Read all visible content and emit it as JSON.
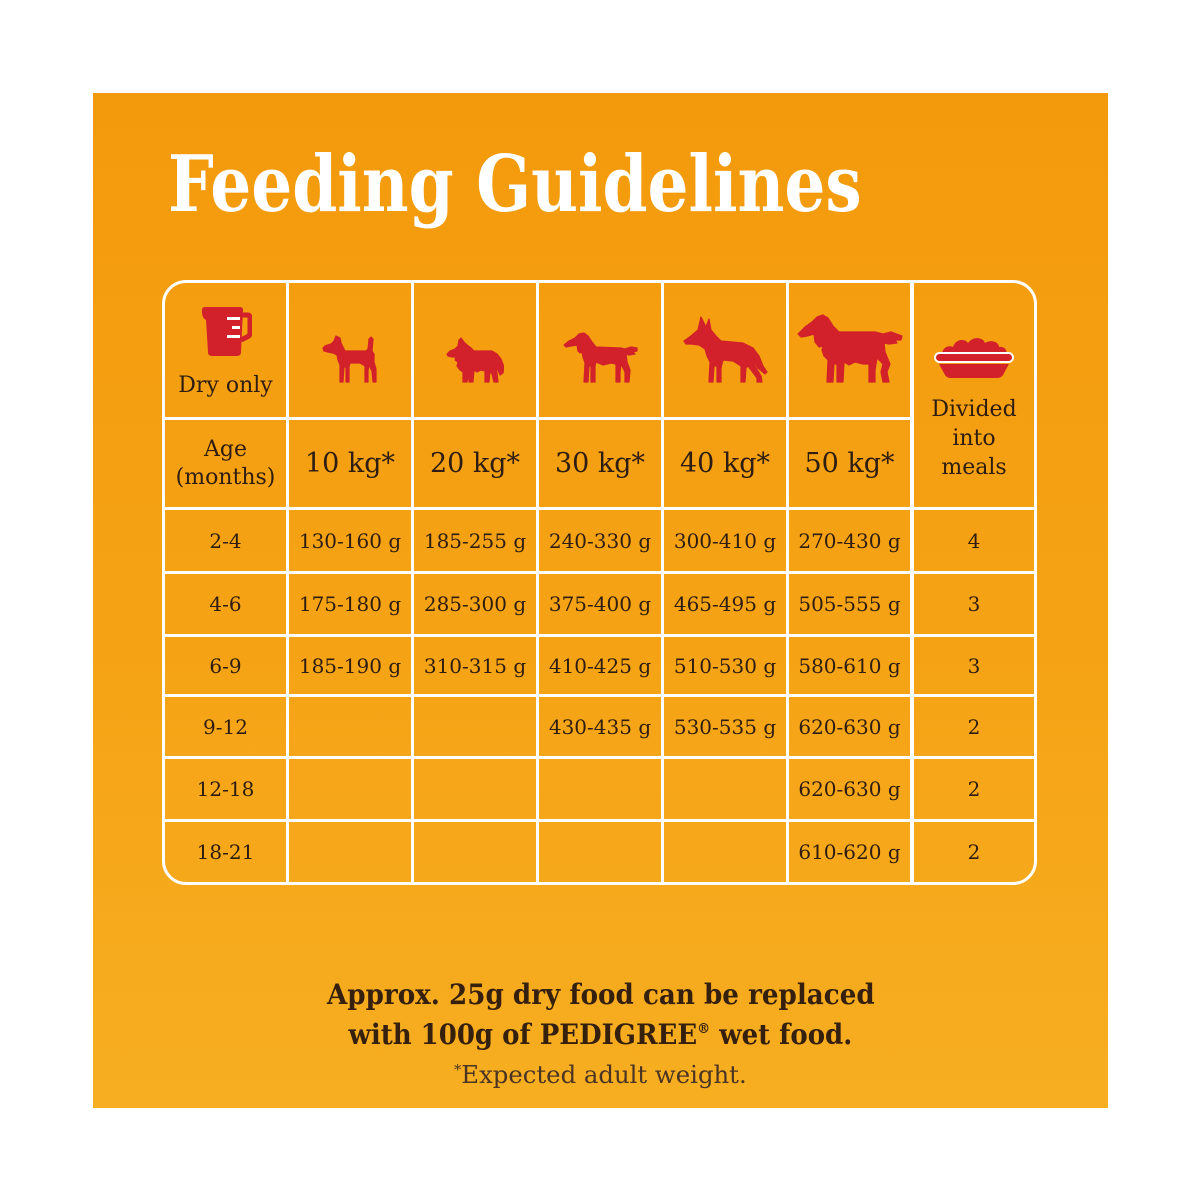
{
  "title": "Feeding Guidelines",
  "colors": {
    "panel_top": "#F39A0C",
    "panel_bottom": "#F7AE21",
    "table_text": "#2E1D10",
    "icon_red": "#D2212B",
    "table_lines": "#FFFFFF",
    "title": "#FFFFFF"
  },
  "table": {
    "icons": [
      "measuring-jug-icon",
      "terrier-dog-icon",
      "collie-dog-icon",
      "setter-dog-icon",
      "german-shepherd-dog-icon",
      "retriever-dog-icon",
      "food-bowl-icon"
    ],
    "dry_only": "Dry only",
    "age_header": [
      "Age",
      "(months)"
    ],
    "weights": [
      "10 kg*",
      "20 kg*",
      "30 kg*",
      "40 kg*",
      "50 kg*"
    ],
    "meals_header": [
      "Divided",
      "into",
      "meals"
    ],
    "rows": [
      {
        "age": "2-4",
        "amounts": [
          "130-160 g",
          "185-255 g",
          "240-330 g",
          "300-410 g",
          "270-430 g"
        ],
        "meals": "4"
      },
      {
        "age": "4-6",
        "amounts": [
          "175-180 g",
          "285-300 g",
          "375-400 g",
          "465-495 g",
          "505-555 g"
        ],
        "meals": "3"
      },
      {
        "age": "6-9",
        "amounts": [
          "185-190 g",
          "310-315 g",
          "410-425 g",
          "510-530 g",
          "580-610 g"
        ],
        "meals": "3"
      },
      {
        "age": "9-12",
        "amounts": [
          "",
          "",
          "430-435 g",
          "530-535 g",
          "620-630 g"
        ],
        "meals": "2"
      },
      {
        "age": "12-18",
        "amounts": [
          "",
          "",
          "",
          "",
          "620-630 g"
        ],
        "meals": "2"
      },
      {
        "age": "18-21",
        "amounts": [
          "",
          "",
          "",
          "",
          "610-620 g"
        ],
        "meals": "2"
      }
    ]
  },
  "footer": {
    "line1": "Approx. 25g dry food can be replaced",
    "line2_start": "with 100g of PEDIGREE",
    "registered": "®",
    "line2_end": " wet food.",
    "footnote_mark": "*",
    "footnote": "Expected adult weight."
  }
}
